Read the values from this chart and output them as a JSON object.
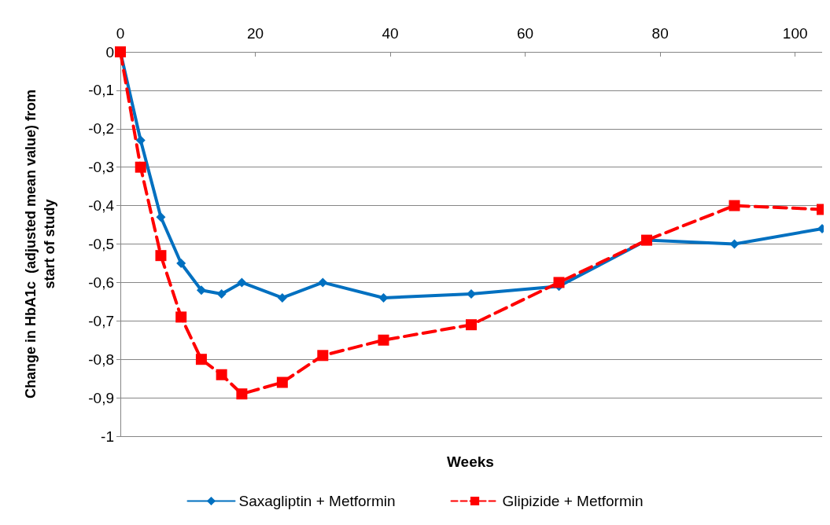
{
  "chart_data": {
    "type": "line",
    "xlabel": "Weeks",
    "ylabel": "Change in HbA1c  (adjusted mean value) from start of study",
    "series": [
      {
        "name": "Saxagliptin + Metformin",
        "color": "#0070c0",
        "marker": "diamond",
        "line_style": "solid",
        "x": [
          0,
          3,
          6,
          9,
          12,
          15,
          18,
          24,
          30,
          39,
          52,
          65,
          78,
          91,
          104
        ],
        "values": [
          0,
          -0.23,
          -0.43,
          -0.55,
          -0.62,
          -0.63,
          -0.6,
          -0.64,
          -0.6,
          -0.64,
          -0.63,
          -0.61,
          -0.49,
          -0.5,
          -0.46
        ]
      },
      {
        "name": "Glipizide + Metformin",
        "color": "#ff0000",
        "marker": "square",
        "line_style": "dashed",
        "x": [
          0,
          3,
          6,
          9,
          12,
          15,
          18,
          24,
          30,
          39,
          52,
          65,
          78,
          91,
          104
        ],
        "values": [
          0,
          -0.3,
          -0.53,
          -0.69,
          -0.8,
          -0.84,
          -0.89,
          -0.86,
          -0.79,
          -0.75,
          -0.71,
          -0.6,
          -0.49,
          -0.4,
          -0.41
        ]
      }
    ],
    "xlim": [
      0,
      104
    ],
    "xticks": [
      0,
      20,
      40,
      60,
      80,
      100
    ],
    "ylim": [
      -1,
      0
    ],
    "yticks": [
      {
        "value": 0,
        "label": "0"
      },
      {
        "value": -0.1,
        "label": "-0,1"
      },
      {
        "value": -0.2,
        "label": "-0,2"
      },
      {
        "value": -0.3,
        "label": "-0,3"
      },
      {
        "value": -0.4,
        "label": "-0,4"
      },
      {
        "value": -0.5,
        "label": "-0,5"
      },
      {
        "value": -0.6,
        "label": "-0,6"
      },
      {
        "value": -0.7,
        "label": "-0,7"
      },
      {
        "value": -0.8,
        "label": "-0,8"
      },
      {
        "value": -0.9,
        "label": "-0,9"
      },
      {
        "value": -1,
        "label": "-1"
      }
    ],
    "grid": "y",
    "legend": "bottom"
  }
}
